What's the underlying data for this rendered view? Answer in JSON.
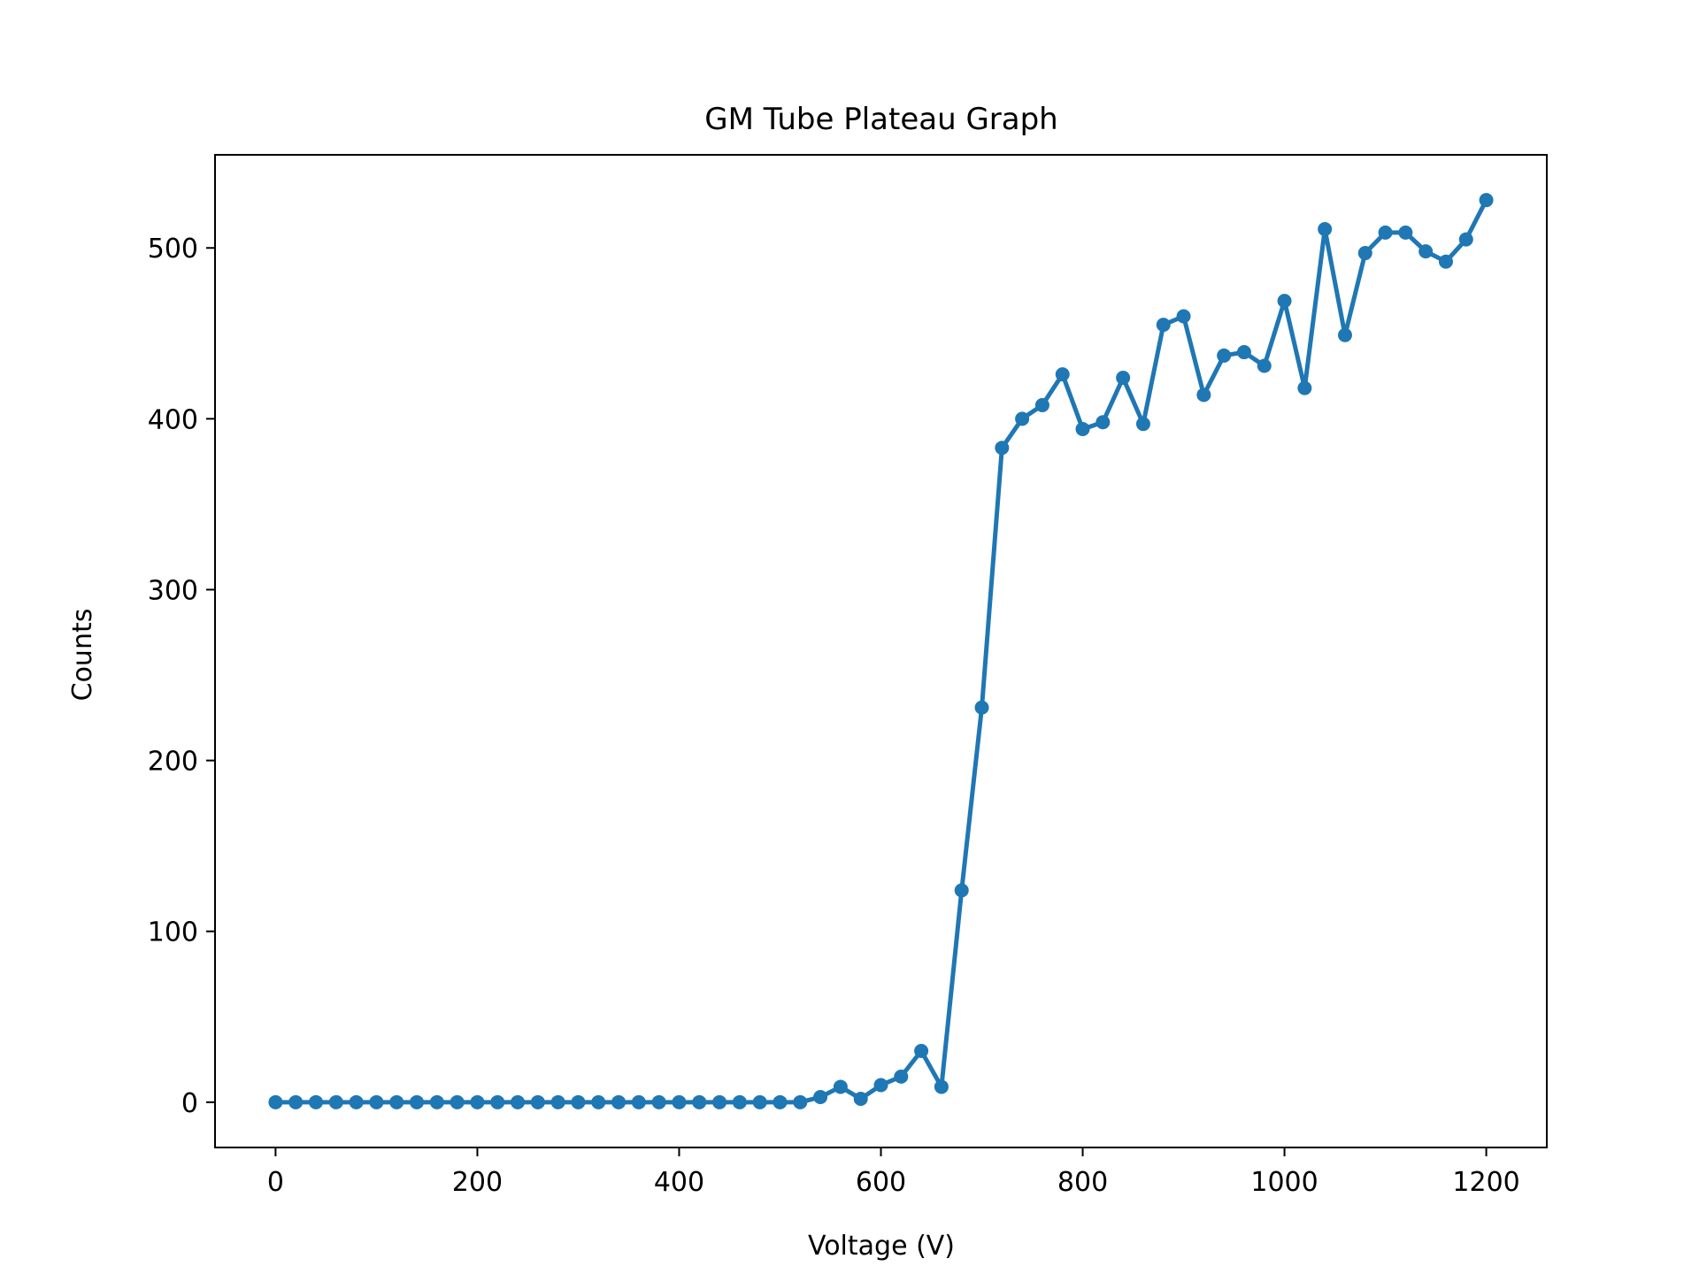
{
  "colors": {
    "background": "#ffffff",
    "axes": "#000000",
    "series": "#1f77b4"
  },
  "chart_data": {
    "type": "line",
    "title": "GM Tube Plateau Graph",
    "xlabel": "Voltage (V)",
    "ylabel": "Counts",
    "xlim": [
      -60,
      1260
    ],
    "ylim": [
      -26.5,
      554.5
    ],
    "grid": false,
    "legend": "none",
    "xticks": [
      0,
      200,
      400,
      600,
      800,
      1000,
      1200
    ],
    "xtick_labels": [
      "0",
      "200",
      "400",
      "600",
      "800",
      "1000",
      "1200"
    ],
    "yticks": [
      0,
      100,
      200,
      300,
      400,
      500
    ],
    "ytick_labels": [
      "0",
      "100",
      "200",
      "300",
      "400",
      "500"
    ],
    "series": [
      {
        "marker": "circle",
        "x": [
          0,
          20,
          40,
          60,
          80,
          100,
          120,
          140,
          160,
          180,
          200,
          220,
          240,
          260,
          280,
          300,
          320,
          340,
          360,
          380,
          400,
          420,
          440,
          460,
          480,
          500,
          520,
          540,
          560,
          580,
          600,
          620,
          640,
          660,
          680,
          700,
          720,
          740,
          760,
          780,
          800,
          820,
          840,
          860,
          880,
          900,
          920,
          940,
          960,
          980,
          1000,
          1020,
          1040,
          1060,
          1080,
          1100,
          1120,
          1140,
          1160,
          1180,
          1200
        ],
        "y": [
          0,
          0,
          0,
          0,
          0,
          0,
          0,
          0,
          0,
          0,
          0,
          0,
          0,
          0,
          0,
          0,
          0,
          0,
          0,
          0,
          0,
          0,
          0,
          0,
          0,
          0,
          0,
          3,
          9,
          2,
          10,
          15,
          30,
          9,
          124,
          231,
          383,
          400,
          408,
          426,
          394,
          398,
          424,
          397,
          455,
          460,
          414,
          437,
          439,
          431,
          469,
          418,
          511,
          449,
          497,
          509,
          509,
          498,
          492,
          505,
          528
        ]
      }
    ]
  }
}
